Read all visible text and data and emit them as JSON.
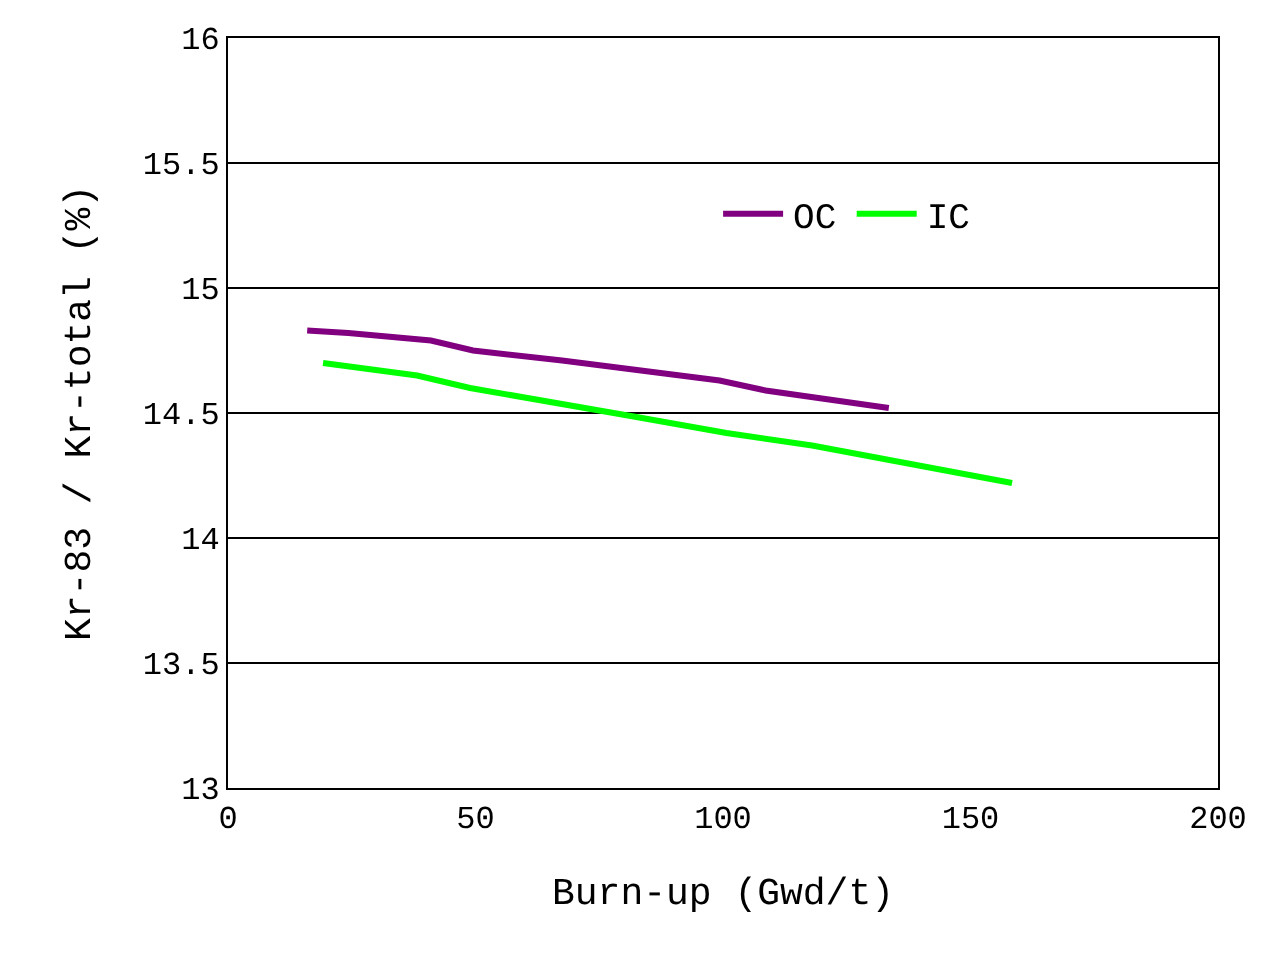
{
  "chart_data": {
    "type": "line",
    "xlabel": "Burn-up (Gwd/t)",
    "ylabel": "Kr-83 / Kr-total (%)",
    "xlim": [
      0,
      200
    ],
    "xticks": [
      0,
      50,
      100,
      150,
      200
    ],
    "ylim": [
      13,
      16
    ],
    "yticks": [
      13,
      13.5,
      14,
      14.5,
      15,
      15.5,
      16
    ],
    "grid": "y",
    "legend": "top right",
    "marker": "none",
    "line_style": "solid",
    "series": [
      {
        "name": "OC",
        "color": "#800080",
        "x": [
          16,
          24.3,
          41,
          49.5,
          67.5,
          99.3,
          108.6,
          133.5
        ],
        "values": [
          14.83,
          14.82,
          14.79,
          14.75,
          14.71,
          14.63,
          14.59,
          14.52
        ]
      },
      {
        "name": "IC",
        "color": "#00ff00",
        "x": [
          19.2,
          38.2,
          48.9,
          80.8,
          100.7,
          118,
          158.4
        ],
        "values": [
          14.7,
          14.65,
          14.6,
          14.49,
          14.42,
          14.37,
          14.22
        ]
      }
    ]
  }
}
